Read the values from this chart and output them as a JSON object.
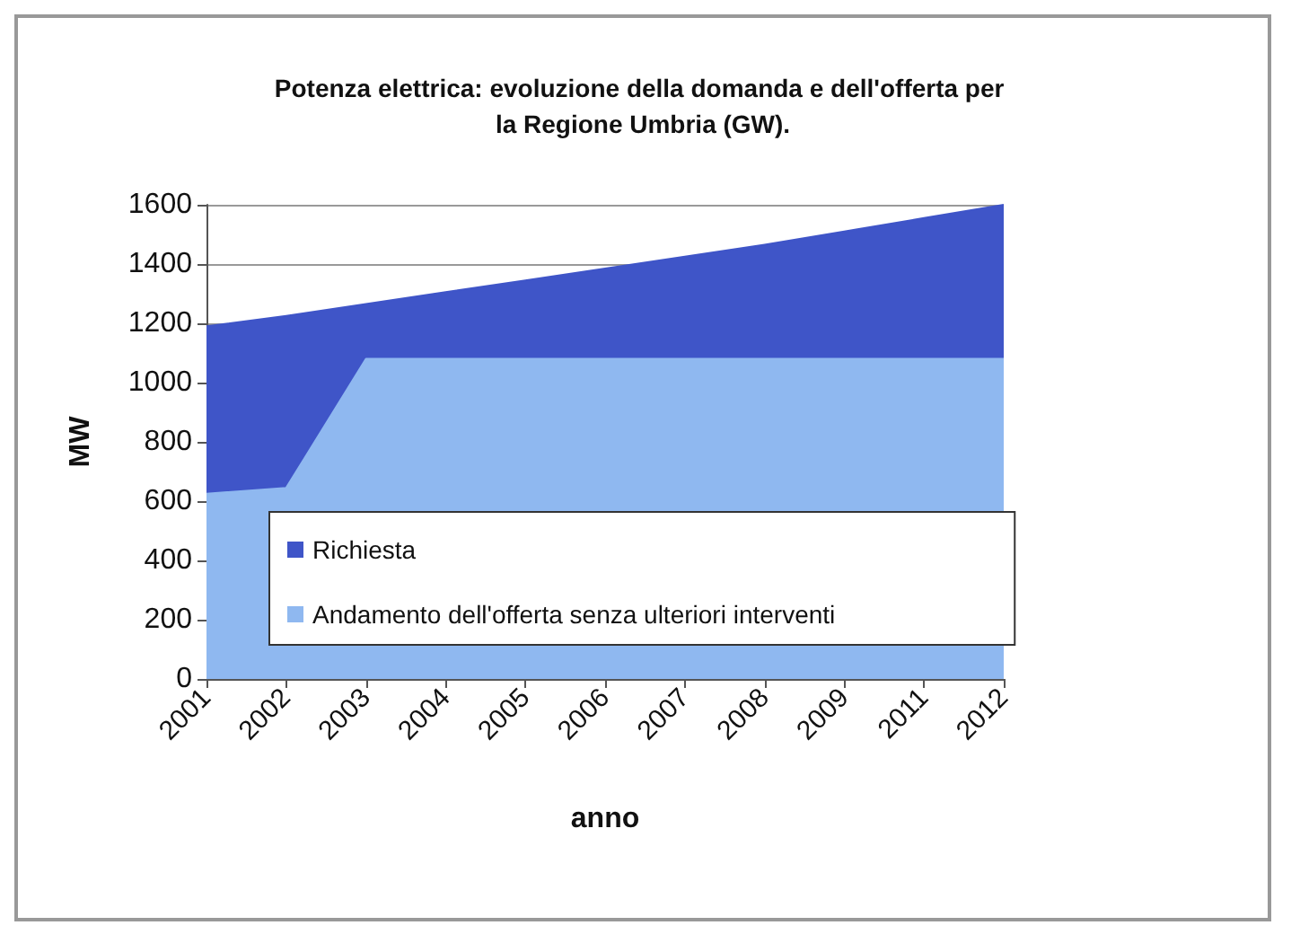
{
  "chart_data": {
    "type": "area",
    "title": "Potenza elettrica: evoluzione della domanda e dell'offerta per la Regione Umbria (GW).",
    "xlabel": "anno",
    "ylabel": "MW",
    "categories": [
      "2001",
      "2002",
      "2003",
      "2004",
      "2005",
      "2006",
      "2007",
      "2008",
      "2009",
      "2011",
      "2012"
    ],
    "series": [
      {
        "name": "Richiesta",
        "color": "#3f55c8",
        "values": [
          1190,
          1225,
          1265,
          1305,
          1345,
          1385,
          1425,
          1465,
          1510,
          1555,
          1600
        ]
      },
      {
        "name": "Andamento dell'offerta senza ulteriori interventi",
        "color": "#8fb8f0",
        "values": [
          625,
          645,
          1080,
          1080,
          1080,
          1080,
          1080,
          1080,
          1080,
          1080,
          1080
        ]
      }
    ],
    "ylim": [
      0,
      1600
    ],
    "yticks": [
      0,
      200,
      400,
      600,
      800,
      1000,
      1200,
      1400,
      1600
    ],
    "grid": "y",
    "legend": "bottom left"
  }
}
